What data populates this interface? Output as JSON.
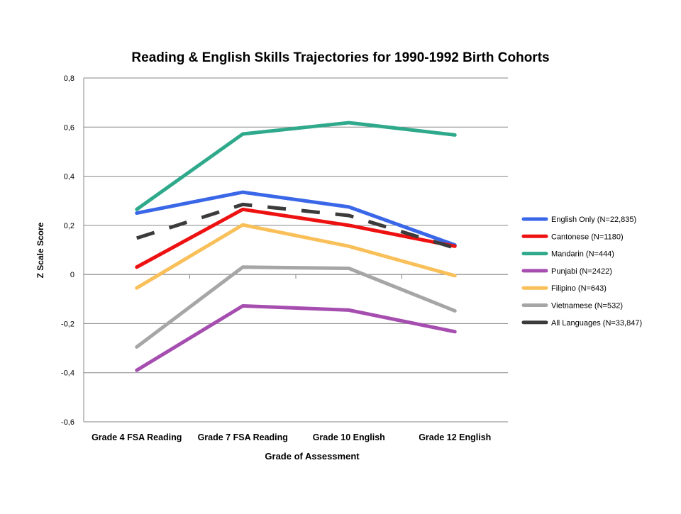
{
  "chart_data": {
    "type": "line",
    "title": "Reading & English Skills Trajectories for 1990-1992  Birth Cohorts",
    "xlabel": "Grade of Assessment",
    "ylabel": "Z Scale Score",
    "categories": [
      "Grade 4 FSA Reading",
      "Grade 7 FSA Reading",
      "Grade 10 English",
      "Grade 12 English"
    ],
    "ylim": [
      -0.6,
      0.8
    ],
    "yticks": [
      {
        "value": 0.8,
        "label": "0,8"
      },
      {
        "value": 0.6,
        "label": "0,6"
      },
      {
        "value": 0.4,
        "label": "0,4"
      },
      {
        "value": 0.2,
        "label": "0,2"
      },
      {
        "value": 0.0,
        "label": "0"
      },
      {
        "value": -0.2,
        "label": "-0,2"
      },
      {
        "value": -0.4,
        "label": "-0,4"
      },
      {
        "value": -0.6,
        "label": "-0,6"
      }
    ],
    "grid": true,
    "legend_position": "right",
    "series": [
      {
        "name": "English Only (N=22,835)",
        "color": "#3a67e8",
        "dashed": false,
        "values": [
          0.25,
          0.335,
          0.275,
          0.12
        ]
      },
      {
        "name": "Cantonese  (N=1180)",
        "color": "#ee1111",
        "dashed": false,
        "values": [
          0.03,
          0.265,
          0.2,
          0.115
        ]
      },
      {
        "name": "Mandarin  (N=444)",
        "color": "#2fa98b",
        "dashed": false,
        "values": [
          0.265,
          0.572,
          0.618,
          0.568
        ]
      },
      {
        "name": "Punjabi  (N=2422)",
        "color": "#a64db0",
        "dashed": false,
        "values": [
          -0.39,
          -0.128,
          -0.145,
          -0.233
        ]
      },
      {
        "name": "Filipino (N=643)",
        "color": "#f9c05a",
        "dashed": false,
        "values": [
          -0.055,
          0.202,
          0.115,
          -0.005
        ]
      },
      {
        "name": "Vietnamese (N=532)",
        "color": "#a6a6a6",
        "dashed": false,
        "values": [
          -0.295,
          0.03,
          0.025,
          -0.148
        ]
      },
      {
        "name": "All Languages  (N=33,847)",
        "color": "#3b3b3b",
        "dashed": true,
        "values": [
          0.148,
          0.285,
          0.24,
          0.108
        ]
      }
    ]
  }
}
